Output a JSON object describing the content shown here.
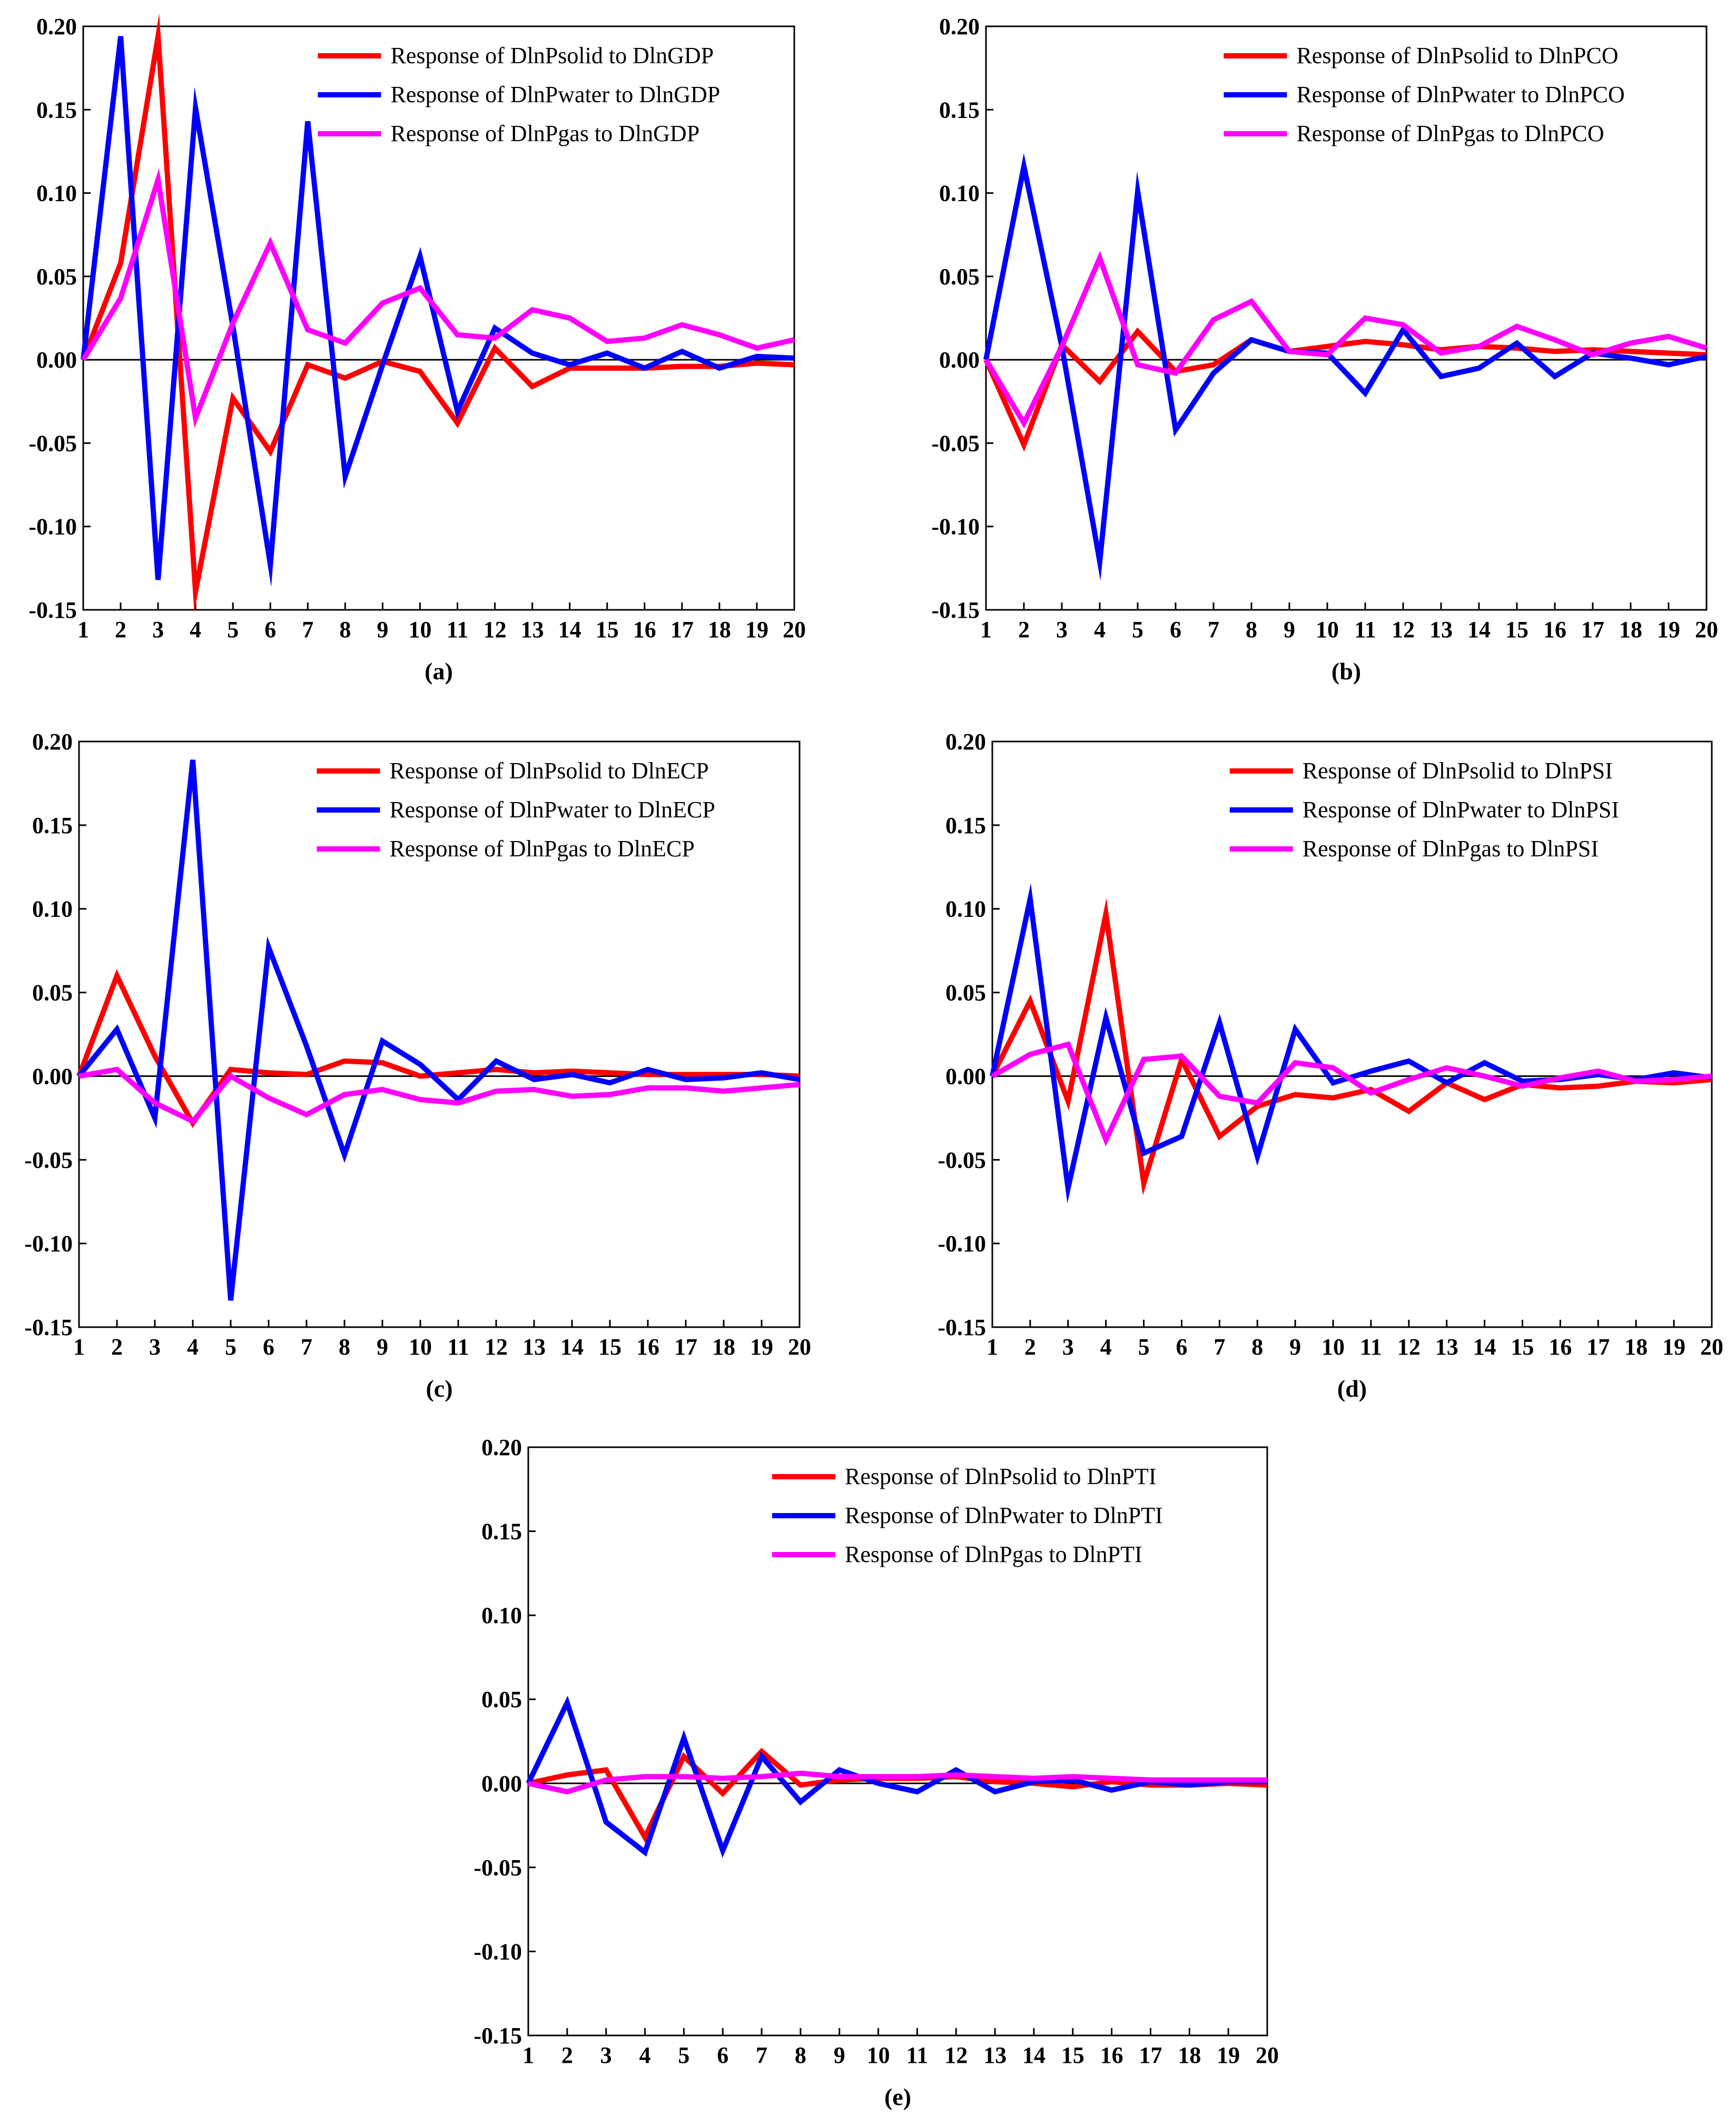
{
  "figure": {
    "colors": {
      "solid": "#ff0000",
      "water": "#0000ff",
      "gas": "#ff00ff"
    },
    "panel_order": [
      "a",
      "b",
      "c",
      "d",
      "e"
    ]
  },
  "chart_data": [
    {
      "id": "a",
      "type": "line",
      "caption": "(a)",
      "title": "",
      "xlabel": "",
      "ylabel": "",
      "x": [
        1,
        2,
        3,
        4,
        5,
        6,
        7,
        8,
        9,
        10,
        11,
        12,
        13,
        14,
        15,
        16,
        17,
        18,
        19,
        20
      ],
      "xticks": [
        "1",
        "2",
        "3",
        "4",
        "5",
        "6",
        "7",
        "8",
        "9",
        "10",
        "11",
        "12",
        "13",
        "14",
        "15",
        "16",
        "17",
        "18",
        "19",
        "20"
      ],
      "ylim": [
        -0.15,
        0.2
      ],
      "yticks": [
        "0.20",
        "0.15",
        "0.10",
        "0.05",
        "0.00",
        "-0.05",
        "-0.10",
        "-0.15"
      ],
      "legend_position": "top-right",
      "series": [
        {
          "name": "Response of DlnPsolid to DlnGDP",
          "color": "#ff0000",
          "values": [
            0.0,
            0.058,
            0.194,
            -0.139,
            -0.023,
            -0.055,
            -0.003,
            -0.011,
            -0.001,
            -0.007,
            -0.038,
            0.007,
            -0.016,
            -0.005,
            -0.005,
            -0.005,
            -0.004,
            -0.004,
            -0.002,
            -0.003
          ]
        },
        {
          "name": "Response of DlnPwater to DlnGDP",
          "color": "#0000ff",
          "values": [
            0.0,
            0.194,
            -0.132,
            0.151,
            0.02,
            -0.123,
            0.143,
            -0.07,
            -0.003,
            0.062,
            -0.031,
            0.019,
            0.004,
            -0.003,
            0.004,
            -0.005,
            0.005,
            -0.005,
            0.002,
            0.001
          ]
        },
        {
          "name": "Response of DlnPgas to DlnGDP",
          "color": "#ff00ff",
          "values": [
            0.0,
            0.037,
            0.108,
            -0.035,
            0.022,
            0.07,
            0.018,
            0.01,
            0.034,
            0.043,
            0.015,
            0.013,
            0.03,
            0.025,
            0.011,
            0.013,
            0.021,
            0.015,
            0.007,
            0.012
          ]
        }
      ]
    },
    {
      "id": "b",
      "type": "line",
      "caption": "(b)",
      "title": "",
      "xlabel": "",
      "ylabel": "",
      "x": [
        1,
        2,
        3,
        4,
        5,
        6,
        7,
        8,
        9,
        10,
        11,
        12,
        13,
        14,
        15,
        16,
        17,
        18,
        19,
        20
      ],
      "xticks": [
        "1",
        "2",
        "3",
        "4",
        "5",
        "6",
        "7",
        "8",
        "9",
        "10",
        "11",
        "12",
        "13",
        "14",
        "15",
        "16",
        "17",
        "18",
        "19",
        "20"
      ],
      "ylim": [
        -0.15,
        0.2
      ],
      "yticks": [
        "0.20",
        "0.15",
        "0.10",
        "0.05",
        "0.00",
        "-0.05",
        "-0.10",
        "-0.15"
      ],
      "legend_position": "top-right",
      "series": [
        {
          "name": "Response of DlnPsolid to DlnPCO",
          "color": "#ff0000",
          "values": [
            0.0,
            -0.051,
            0.009,
            -0.013,
            0.017,
            -0.007,
            -0.003,
            0.012,
            0.005,
            0.008,
            0.011,
            0.009,
            0.006,
            0.008,
            0.007,
            0.005,
            0.006,
            0.005,
            0.004,
            0.003
          ]
        },
        {
          "name": "Response of DlnPwater to DlnPCO",
          "color": "#0000ff",
          "values": [
            0.0,
            0.116,
            0.008,
            -0.121,
            0.101,
            -0.042,
            -0.008,
            0.012,
            0.005,
            0.004,
            -0.02,
            0.018,
            -0.01,
            -0.005,
            0.01,
            -0.01,
            0.004,
            0.001,
            -0.003,
            0.002
          ]
        },
        {
          "name": "Response of DlnPgas to DlnPCO",
          "color": "#ff00ff",
          "values": [
            0.0,
            -0.038,
            0.008,
            0.061,
            -0.003,
            -0.008,
            0.024,
            0.035,
            0.005,
            0.003,
            0.025,
            0.021,
            0.004,
            0.008,
            0.02,
            0.012,
            0.003,
            0.01,
            0.014,
            0.007
          ]
        }
      ]
    },
    {
      "id": "c",
      "type": "line",
      "caption": "(c)",
      "title": "",
      "xlabel": "",
      "ylabel": "",
      "x": [
        1,
        2,
        3,
        4,
        5,
        6,
        7,
        8,
        9,
        10,
        11,
        12,
        13,
        14,
        15,
        16,
        17,
        18,
        19,
        20
      ],
      "xticks": [
        "1",
        "2",
        "3",
        "4",
        "5",
        "6",
        "7",
        "8",
        "9",
        "10",
        "11",
        "12",
        "13",
        "14",
        "15",
        "16",
        "17",
        "18",
        "19",
        "20"
      ],
      "ylim": [
        -0.15,
        0.2
      ],
      "yticks": [
        "0.20",
        "0.15",
        "0.10",
        "0.05",
        "0.00",
        "-0.05",
        "-0.10",
        "-0.15"
      ],
      "legend_position": "top-right",
      "series": [
        {
          "name": "Response of DlnPsolid to DlnECP",
          "color": "#ff0000",
          "values": [
            0.0,
            0.06,
            0.012,
            -0.028,
            0.004,
            0.002,
            0.001,
            0.009,
            0.008,
            0.0,
            0.002,
            0.004,
            0.002,
            0.003,
            0.002,
            0.001,
            0.001,
            0.001,
            0.001,
            0.0
          ]
        },
        {
          "name": "Response of DlnPwater to DlnECP",
          "color": "#0000ff",
          "values": [
            0.0,
            0.028,
            -0.025,
            0.189,
            -0.134,
            0.077,
            0.018,
            -0.047,
            0.021,
            0.007,
            -0.014,
            0.009,
            -0.002,
            0.001,
            -0.004,
            0.004,
            -0.002,
            -0.001,
            0.002,
            -0.002
          ]
        },
        {
          "name": "Response of DlnPgas to DlnECP",
          "color": "#ff00ff",
          "values": [
            0.0,
            0.004,
            -0.016,
            -0.027,
            0.0,
            -0.013,
            -0.023,
            -0.011,
            -0.008,
            -0.014,
            -0.016,
            -0.009,
            -0.008,
            -0.012,
            -0.011,
            -0.007,
            -0.007,
            -0.009,
            -0.007,
            -0.005
          ]
        }
      ]
    },
    {
      "id": "d",
      "type": "line",
      "caption": "(d)",
      "title": "",
      "xlabel": "",
      "ylabel": "",
      "x": [
        1,
        2,
        3,
        4,
        5,
        6,
        7,
        8,
        9,
        10,
        11,
        12,
        13,
        14,
        15,
        16,
        17,
        18,
        19,
        20
      ],
      "xticks": [
        "1",
        "2",
        "3",
        "4",
        "5",
        "6",
        "7",
        "8",
        "9",
        "10",
        "11",
        "12",
        "13",
        "14",
        "15",
        "16",
        "17",
        "18",
        "19",
        "20"
      ],
      "ylim": [
        -0.15,
        0.2
      ],
      "yticks": [
        "0.20",
        "0.15",
        "0.10",
        "0.05",
        "0.00",
        "-0.05",
        "-0.10",
        "-0.15"
      ],
      "legend_position": "top-right",
      "series": [
        {
          "name": "Response of DlnPsolid to DlnPSI",
          "color": "#ff0000",
          "values": [
            0.0,
            0.045,
            -0.015,
            0.097,
            -0.064,
            0.01,
            -0.036,
            -0.018,
            -0.011,
            -0.013,
            -0.008,
            -0.021,
            -0.004,
            -0.014,
            -0.005,
            -0.007,
            -0.006,
            -0.003,
            -0.004,
            -0.002
          ]
        },
        {
          "name": "Response of DlnPwater to DlnPSI",
          "color": "#0000ff",
          "values": [
            0.0,
            0.106,
            -0.067,
            0.035,
            -0.046,
            -0.036,
            0.032,
            -0.048,
            0.028,
            -0.004,
            0.003,
            0.009,
            -0.004,
            0.008,
            -0.003,
            -0.002,
            0.001,
            -0.002,
            0.002,
            -0.001
          ]
        },
        {
          "name": "Response of DlnPgas to DlnPSI",
          "color": "#ff00ff",
          "values": [
            0.0,
            0.013,
            0.019,
            -0.038,
            0.01,
            0.012,
            -0.012,
            -0.016,
            0.008,
            0.005,
            -0.01,
            -0.002,
            0.005,
            0.0,
            -0.006,
            -0.001,
            0.003,
            -0.003,
            -0.002,
            0.0
          ]
        }
      ]
    },
    {
      "id": "e",
      "type": "line",
      "caption": "(e)",
      "title": "",
      "xlabel": "",
      "ylabel": "",
      "x": [
        1,
        2,
        3,
        4,
        5,
        6,
        7,
        8,
        9,
        10,
        11,
        12,
        13,
        14,
        15,
        16,
        17,
        18,
        19,
        20
      ],
      "xticks": [
        "1",
        "2",
        "3",
        "4",
        "5",
        "6",
        "7",
        "8",
        "9",
        "10",
        "11",
        "12",
        "13",
        "14",
        "15",
        "16",
        "17",
        "18",
        "19",
        "20"
      ],
      "ylim": [
        -0.15,
        0.2
      ],
      "yticks": [
        "0.20",
        "0.15",
        "0.10",
        "0.05",
        "0.00",
        "-0.05",
        "-0.10",
        "-0.15"
      ],
      "legend_position": "top-right",
      "series": [
        {
          "name": "Response of DlnPsolid to DlnPTI",
          "color": "#ff0000",
          "values": [
            0.0,
            0.005,
            0.008,
            -0.032,
            0.016,
            -0.006,
            0.019,
            -0.001,
            0.002,
            0.003,
            0.003,
            0.004,
            0.001,
            0.0,
            -0.002,
            0.001,
            -0.001,
            -0.001,
            0.0,
            -0.001
          ]
        },
        {
          "name": "Response of DlnPwater to DlnPTI",
          "color": "#0000ff",
          "values": [
            0.0,
            0.048,
            -0.023,
            -0.041,
            0.027,
            -0.04,
            0.016,
            -0.011,
            0.008,
            0.0,
            -0.005,
            0.008,
            -0.005,
            0.001,
            0.002,
            -0.004,
            0.001,
            -0.001,
            0.001,
            0.001
          ]
        },
        {
          "name": "Response of DlnPgas to DlnPTI",
          "color": "#ff00ff",
          "values": [
            0.0,
            -0.005,
            0.002,
            0.004,
            0.004,
            0.003,
            0.004,
            0.006,
            0.004,
            0.004,
            0.004,
            0.005,
            0.004,
            0.003,
            0.004,
            0.003,
            0.002,
            0.002,
            0.002,
            0.002
          ]
        }
      ]
    }
  ]
}
